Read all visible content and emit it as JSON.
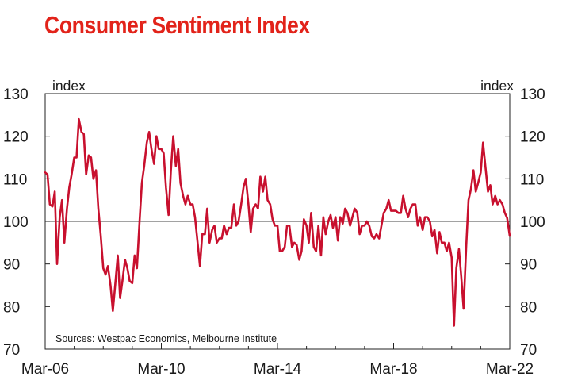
{
  "chart_data": {
    "type": "line",
    "title": "Consumer Sentiment Index",
    "ylabel_left": "index",
    "ylabel_right": "index",
    "ylim": [
      70,
      130
    ],
    "yticks": [
      70,
      80,
      90,
      100,
      110,
      120,
      130
    ],
    "xlim": [
      2006.17,
      2022.17
    ],
    "xticks": [
      {
        "label": "Mar-06",
        "value": 2006.17
      },
      {
        "label": "Mar-10",
        "value": 2010.17
      },
      {
        "label": "Mar-14",
        "value": 2014.17
      },
      {
        "label": "Mar-18",
        "value": 2018.17
      },
      {
        "label": "Mar-22",
        "value": 2022.17
      }
    ],
    "reference_line": 100,
    "source": "Sources: Westpac Economics, Melbourne Institute",
    "color": "#c8102e",
    "series": [
      {
        "name": "Consumer Sentiment Index",
        "points": [
          [
            2006.17,
            111.5
          ],
          [
            2006.25,
            111
          ],
          [
            2006.33,
            104
          ],
          [
            2006.42,
            103.5
          ],
          [
            2006.5,
            107
          ],
          [
            2006.58,
            90
          ],
          [
            2006.67,
            101
          ],
          [
            2006.75,
            105
          ],
          [
            2006.83,
            95
          ],
          [
            2006.92,
            103
          ],
          [
            2007.0,
            108
          ],
          [
            2007.08,
            111
          ],
          [
            2007.17,
            115
          ],
          [
            2007.25,
            115
          ],
          [
            2007.33,
            124
          ],
          [
            2007.42,
            121
          ],
          [
            2007.5,
            120.5
          ],
          [
            2007.58,
            111
          ],
          [
            2007.67,
            115.5
          ],
          [
            2007.75,
            115
          ],
          [
            2007.83,
            110
          ],
          [
            2007.92,
            112
          ],
          [
            2008.0,
            103
          ],
          [
            2008.08,
            97
          ],
          [
            2008.17,
            89
          ],
          [
            2008.25,
            87.5
          ],
          [
            2008.33,
            89.5
          ],
          [
            2008.42,
            85
          ],
          [
            2008.5,
            79
          ],
          [
            2008.58,
            85
          ],
          [
            2008.67,
            92
          ],
          [
            2008.75,
            82
          ],
          [
            2008.83,
            86
          ],
          [
            2008.92,
            91
          ],
          [
            2009.0,
            89
          ],
          [
            2009.08,
            86
          ],
          [
            2009.17,
            85.5
          ],
          [
            2009.25,
            92
          ],
          [
            2009.33,
            89
          ],
          [
            2009.42,
            100
          ],
          [
            2009.5,
            109
          ],
          [
            2009.58,
            113
          ],
          [
            2009.67,
            118.5
          ],
          [
            2009.75,
            121
          ],
          [
            2009.83,
            117
          ],
          [
            2009.92,
            113.5
          ],
          [
            2010.0,
            120
          ],
          [
            2010.08,
            117
          ],
          [
            2010.17,
            117
          ],
          [
            2010.25,
            116
          ],
          [
            2010.33,
            108
          ],
          [
            2010.42,
            101.5
          ],
          [
            2010.5,
            112
          ],
          [
            2010.58,
            120
          ],
          [
            2010.67,
            113
          ],
          [
            2010.75,
            117
          ],
          [
            2010.83,
            109
          ],
          [
            2010.92,
            106
          ],
          [
            2011.0,
            104
          ],
          [
            2011.08,
            106
          ],
          [
            2011.17,
            104
          ],
          [
            2011.25,
            104
          ],
          [
            2011.33,
            101
          ],
          [
            2011.42,
            95
          ],
          [
            2011.5,
            89.5
          ],
          [
            2011.58,
            97
          ],
          [
            2011.67,
            97
          ],
          [
            2011.75,
            103
          ],
          [
            2011.83,
            95
          ],
          [
            2011.92,
            98
          ],
          [
            2012.0,
            99
          ],
          [
            2012.08,
            95
          ],
          [
            2012.17,
            96
          ],
          [
            2012.25,
            96
          ],
          [
            2012.33,
            99
          ],
          [
            2012.42,
            97
          ],
          [
            2012.5,
            98.5
          ],
          [
            2012.58,
            98.5
          ],
          [
            2012.67,
            104
          ],
          [
            2012.75,
            99
          ],
          [
            2012.83,
            100
          ],
          [
            2012.92,
            104
          ],
          [
            2013.0,
            108
          ],
          [
            2013.08,
            110
          ],
          [
            2013.17,
            104
          ],
          [
            2013.25,
            97.5
          ],
          [
            2013.33,
            103
          ],
          [
            2013.42,
            104
          ],
          [
            2013.5,
            103
          ],
          [
            2013.58,
            110.5
          ],
          [
            2013.67,
            107
          ],
          [
            2013.75,
            110.5
          ],
          [
            2013.83,
            105
          ],
          [
            2013.92,
            104
          ],
          [
            2014.0,
            100.5
          ],
          [
            2014.08,
            99
          ],
          [
            2014.17,
            99
          ],
          [
            2014.25,
            93
          ],
          [
            2014.33,
            93
          ],
          [
            2014.42,
            94
          ],
          [
            2014.5,
            99
          ],
          [
            2014.58,
            99
          ],
          [
            2014.67,
            94
          ],
          [
            2014.75,
            95
          ],
          [
            2014.83,
            94.5
          ],
          [
            2014.92,
            91
          ],
          [
            2015.0,
            93
          ],
          [
            2015.08,
            100.5
          ],
          [
            2015.17,
            99
          ],
          [
            2015.25,
            95
          ],
          [
            2015.33,
            102
          ],
          [
            2015.42,
            94
          ],
          [
            2015.5,
            93
          ],
          [
            2015.58,
            99
          ],
          [
            2015.67,
            92
          ],
          [
            2015.75,
            101
          ],
          [
            2015.83,
            97
          ],
          [
            2015.92,
            100
          ],
          [
            2016.0,
            101.5
          ],
          [
            2016.08,
            98.5
          ],
          [
            2016.17,
            101
          ],
          [
            2016.25,
            95.5
          ],
          [
            2016.33,
            101
          ],
          [
            2016.42,
            99.5
          ],
          [
            2016.5,
            103
          ],
          [
            2016.58,
            102
          ],
          [
            2016.67,
            99
          ],
          [
            2016.75,
            101
          ],
          [
            2016.83,
            103
          ],
          [
            2016.92,
            102
          ],
          [
            2017.0,
            97
          ],
          [
            2017.08,
            99
          ],
          [
            2017.17,
            99
          ],
          [
            2017.25,
            100
          ],
          [
            2017.33,
            99
          ],
          [
            2017.42,
            96.5
          ],
          [
            2017.5,
            96
          ],
          [
            2017.58,
            97
          ],
          [
            2017.67,
            96
          ],
          [
            2017.75,
            99
          ],
          [
            2017.83,
            102
          ],
          [
            2017.92,
            103
          ],
          [
            2018.0,
            105
          ],
          [
            2018.08,
            102.5
          ],
          [
            2018.17,
            102.5
          ],
          [
            2018.25,
            102.5
          ],
          [
            2018.33,
            102
          ],
          [
            2018.42,
            102
          ],
          [
            2018.5,
            106
          ],
          [
            2018.58,
            103
          ],
          [
            2018.67,
            101
          ],
          [
            2018.75,
            103
          ],
          [
            2018.83,
            104
          ],
          [
            2018.92,
            104
          ],
          [
            2019.0,
            99
          ],
          [
            2019.08,
            101
          ],
          [
            2019.17,
            98
          ],
          [
            2019.25,
            101
          ],
          [
            2019.33,
            101
          ],
          [
            2019.42,
            100
          ],
          [
            2019.5,
            96.5
          ],
          [
            2019.58,
            98
          ],
          [
            2019.67,
            92.5
          ],
          [
            2019.75,
            97.5
          ],
          [
            2019.83,
            95
          ],
          [
            2019.92,
            95
          ],
          [
            2020.0,
            93
          ],
          [
            2020.08,
            95
          ],
          [
            2020.17,
            91.5
          ],
          [
            2020.25,
            75.5
          ],
          [
            2020.33,
            89
          ],
          [
            2020.42,
            93.5
          ],
          [
            2020.5,
            87
          ],
          [
            2020.58,
            79.5
          ],
          [
            2020.67,
            94
          ],
          [
            2020.75,
            105
          ],
          [
            2020.83,
            107.5
          ],
          [
            2020.92,
            112
          ],
          [
            2021.0,
            107
          ],
          [
            2021.08,
            109
          ],
          [
            2021.17,
            111.5
          ],
          [
            2021.25,
            118.5
          ],
          [
            2021.33,
            113
          ],
          [
            2021.42,
            107
          ],
          [
            2021.5,
            108.5
          ],
          [
            2021.58,
            104
          ],
          [
            2021.67,
            106
          ],
          [
            2021.75,
            104
          ],
          [
            2021.83,
            105
          ],
          [
            2021.92,
            104
          ],
          [
            2022.0,
            102
          ],
          [
            2022.08,
            100.8
          ],
          [
            2022.17,
            96.6
          ]
        ]
      }
    ]
  }
}
